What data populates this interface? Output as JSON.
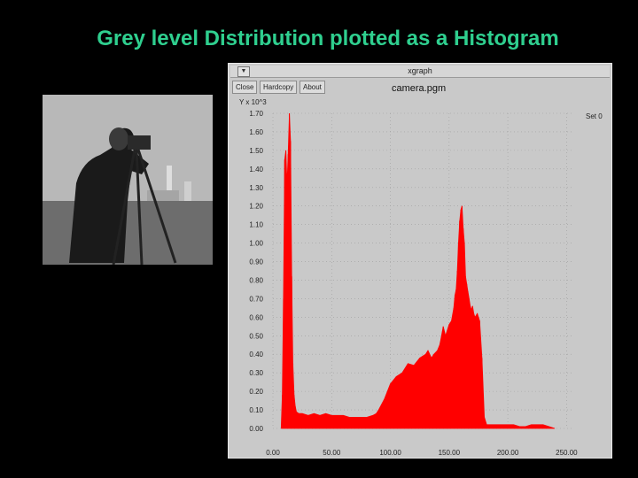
{
  "slide": {
    "title": "Grey level Distribution plotted as a Histogram"
  },
  "window": {
    "title": "xgraph",
    "menu_glyph": "▼",
    "buttons": [
      "Close",
      "Hardcopy",
      "About"
    ],
    "file_title": "camera.pgm"
  },
  "colors": {
    "background": "#000000",
    "title": "#2fcf8f",
    "window_bg": "#c9c9c9",
    "series": "#ff0000",
    "grid": "#9e9e9e"
  },
  "chart_data": {
    "type": "area",
    "title": "camera.pgm",
    "ylabel": "Y x 10^3",
    "legend": "Set 0",
    "legend_position": "top-right",
    "grid": true,
    "xlim": [
      0,
      255
    ],
    "ylim": [
      0,
      1.7
    ],
    "x_ticks": [
      "0.00",
      "50.00",
      "100.00",
      "150.00",
      "200.00",
      "250.00"
    ],
    "y_ticks": [
      "0.00",
      "0.10",
      "0.20",
      "0.30",
      "0.40",
      "0.50",
      "0.60",
      "0.70",
      "0.80",
      "0.90",
      "1.00",
      "1.10",
      "1.20",
      "1.30",
      "1.40",
      "1.50",
      "1.60",
      "1.70"
    ],
    "series": [
      {
        "x": [
          7,
          8,
          9,
          10,
          11,
          12,
          13,
          14,
          15,
          16,
          17,
          18,
          19,
          20,
          22,
          25,
          30,
          35,
          40,
          45,
          50,
          55,
          60,
          65,
          70,
          75,
          80,
          85,
          88,
          90,
          95,
          100,
          105,
          110,
          115,
          120,
          125,
          130,
          132,
          135,
          137,
          140,
          142,
          143,
          145,
          147,
          150,
          152,
          154,
          155,
          156,
          157,
          158,
          159,
          160,
          161,
          162,
          163,
          164,
          165,
          166,
          167,
          168,
          169,
          170,
          171,
          172,
          174,
          176,
          178,
          180,
          182,
          185,
          190,
          195,
          200,
          205,
          210,
          215,
          220,
          225,
          230,
          235,
          240
        ],
        "y": [
          0.0,
          0.18,
          0.7,
          1.45,
          1.5,
          1.32,
          1.48,
          1.7,
          1.55,
          0.82,
          0.35,
          0.18,
          0.12,
          0.09,
          0.08,
          0.08,
          0.07,
          0.08,
          0.07,
          0.08,
          0.07,
          0.07,
          0.07,
          0.06,
          0.06,
          0.06,
          0.06,
          0.07,
          0.08,
          0.1,
          0.16,
          0.24,
          0.28,
          0.3,
          0.35,
          0.34,
          0.38,
          0.4,
          0.42,
          0.38,
          0.4,
          0.42,
          0.45,
          0.48,
          0.55,
          0.5,
          0.56,
          0.58,
          0.65,
          0.72,
          0.75,
          0.85,
          1.0,
          1.12,
          1.18,
          1.2,
          1.08,
          1.0,
          0.82,
          0.78,
          0.74,
          0.7,
          0.66,
          0.64,
          0.66,
          0.62,
          0.6,
          0.62,
          0.58,
          0.38,
          0.06,
          0.02,
          0.02,
          0.02,
          0.02,
          0.02,
          0.02,
          0.01,
          0.01,
          0.02,
          0.02,
          0.02,
          0.01,
          0.0
        ]
      }
    ]
  }
}
